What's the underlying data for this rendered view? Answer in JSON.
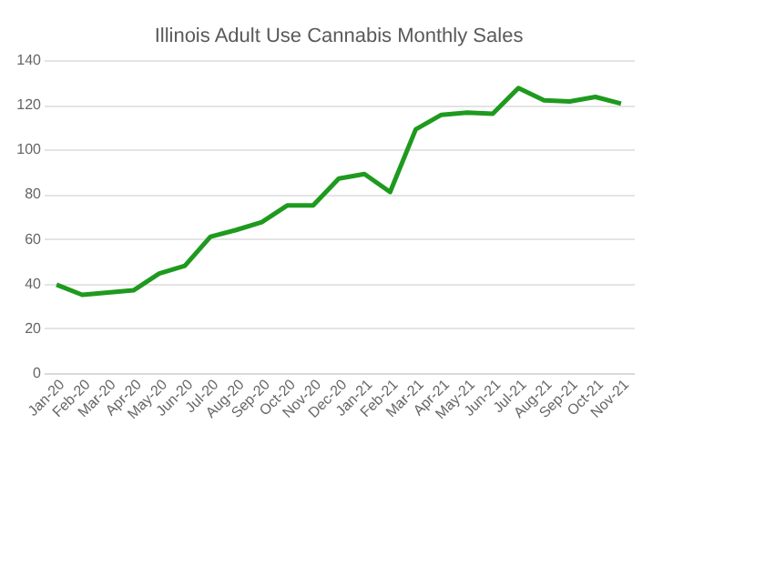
{
  "chart_data": {
    "type": "line",
    "title": "Illinois Adult Use Cannabis Monthly Sales",
    "categories": [
      "Jan-20",
      "Feb-20",
      "Mar-20",
      "Apr-20",
      "May-20",
      "Jun-20",
      "Jul-20",
      "Aug-20",
      "Sep-20",
      "Oct-20",
      "Nov-20",
      "Dec-20",
      "Jan-21",
      "Feb-21",
      "Mar-21",
      "Apr-21",
      "May-21",
      "Jun-21",
      "Jul-21",
      "Aug-21",
      "Sep-21",
      "Oct-21",
      "Nov-21"
    ],
    "series": [
      {
        "color": "#1e9a1e",
        "values": [
          39.5,
          35,
          36,
          37,
          44.5,
          48,
          61,
          64,
          67.5,
          75,
          75,
          87,
          89,
          81,
          109,
          115.5,
          116.5,
          116,
          127.5,
          122,
          121.5,
          123.5,
          120.5
        ]
      }
    ],
    "ylim": [
      0,
      140
    ],
    "yticks": [
      0,
      20,
      40,
      60,
      80,
      100,
      120,
      140
    ],
    "grid": "y",
    "legend": false,
    "marker": "none",
    "line_style": "solid"
  }
}
